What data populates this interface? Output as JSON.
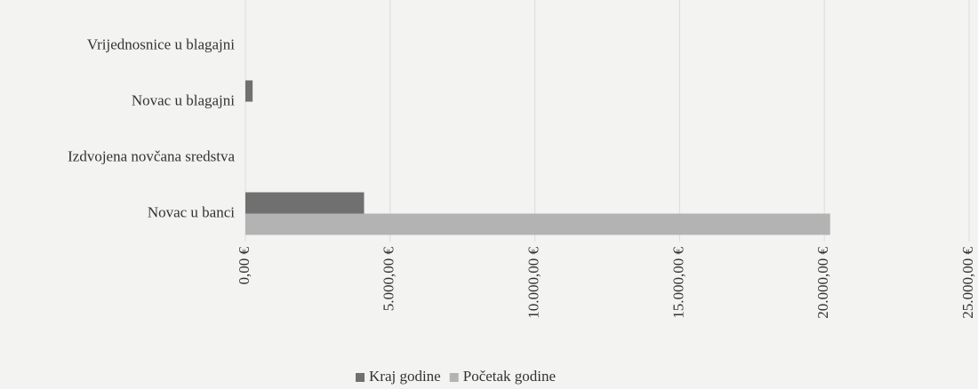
{
  "chart_data": {
    "type": "barh",
    "categories": [
      "Vrijednosnice u blagajni",
      "Novac u blagajni",
      "Izdvojena novčana sredstva",
      "Novac u banci"
    ],
    "series": [
      {
        "name": "Kraj godine",
        "color": "#707070",
        "values": [
          0,
          250,
          0,
          4100
        ]
      },
      {
        "name": "Početak godine",
        "color": "#b3b3b3",
        "values": [
          0,
          0,
          0,
          20200
        ]
      }
    ],
    "xlim": [
      0,
      25000
    ],
    "xticks": [
      {
        "value": 0,
        "label": "0,00 €"
      },
      {
        "value": 5000,
        "label": "5.000,00 €"
      },
      {
        "value": 10000,
        "label": "10.000,00 €"
      },
      {
        "value": 15000,
        "label": "15.000,00 €"
      },
      {
        "value": 20000,
        "label": "20.000,00 €"
      },
      {
        "value": 25000,
        "label": "25.000,00 €"
      }
    ],
    "grid": true,
    "legend": "bottom"
  }
}
